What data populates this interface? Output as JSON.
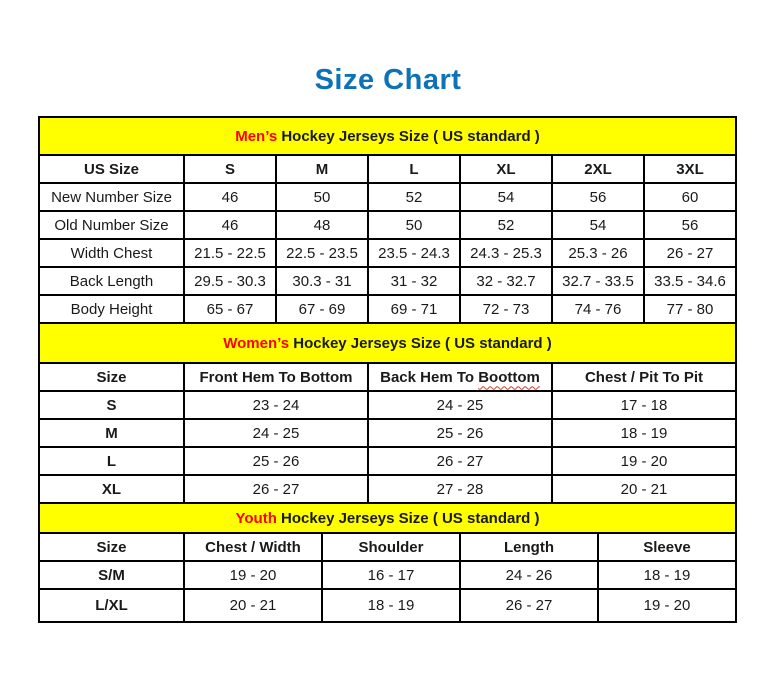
{
  "page_title": "Size Chart",
  "colors": {
    "title_blue": "#0e72b8",
    "banner_yellow": "#ffff00",
    "accent_red": "#ff0000",
    "border_black": "#000000"
  },
  "tables": [
    {
      "id": "mens",
      "banner_highlight": "Men’s",
      "banner_text": " Hockey Jerseys Size ( US standard )",
      "columns": [
        {
          "text": "US Size"
        },
        {
          "text": "S"
        },
        {
          "text": "M"
        },
        {
          "text": "L"
        },
        {
          "text": "XL"
        },
        {
          "text": "2XL"
        },
        {
          "text": "3XL"
        }
      ],
      "rows": [
        {
          "label": "New Number Size",
          "values": [
            "46",
            "50",
            "52",
            "54",
            "56",
            "60"
          ]
        },
        {
          "label": "Old Number Size",
          "values": [
            "46",
            "48",
            "50",
            "52",
            "54",
            "56"
          ]
        },
        {
          "label": "Width Chest",
          "values": [
            "21.5 - 22.5",
            "22.5 - 23.5",
            "23.5 - 24.3",
            "24.3 - 25.3",
            "25.3 - 26",
            "26 - 27"
          ]
        },
        {
          "label": "Back Length",
          "values": [
            "29.5 - 30.3",
            "30.3 - 31",
            "31 - 32",
            "32 - 32.7",
            "32.7 - 33.5",
            "33.5 - 34.6"
          ]
        },
        {
          "label": "Body Height",
          "values": [
            "65 - 67",
            "67 - 69",
            "69 - 71",
            "72 - 73",
            "74 - 76",
            "77 - 80"
          ]
        }
      ]
    },
    {
      "id": "womens",
      "banner_highlight": "Women’s",
      "banner_text": " Hockey Jerseys Size ( US standard )",
      "columns": [
        {
          "text": "Size"
        },
        {
          "text": "Front Hem To Bottom"
        },
        {
          "text": "Back Hem To Boottom",
          "spellcheck_word": "Boottom"
        },
        {
          "text": "Chest / Pit To Pit"
        }
      ],
      "rows": [
        {
          "label": "S",
          "values": [
            "23 - 24",
            "24 - 25",
            "17 - 18"
          ]
        },
        {
          "label": "M",
          "values": [
            "24 - 25",
            "25 - 26",
            "18 - 19"
          ]
        },
        {
          "label": "L",
          "values": [
            "25 - 26",
            "26 - 27",
            "19 - 20"
          ]
        },
        {
          "label": "XL",
          "values": [
            "26 - 27",
            "27 - 28",
            "20 - 21"
          ]
        }
      ]
    },
    {
      "id": "youth",
      "banner_highlight": "Youth",
      "banner_text": " Hockey Jerseys Size ( US standard )",
      "columns": [
        {
          "text": "Size"
        },
        {
          "text": "Chest / Width"
        },
        {
          "text": "Shoulder"
        },
        {
          "text": "Length"
        },
        {
          "text": "Sleeve"
        }
      ],
      "rows": [
        {
          "label": "S/M",
          "values": [
            "19 - 20",
            "16 - 17",
            "24 - 26",
            "18 - 19"
          ]
        },
        {
          "label": "L/XL",
          "values": [
            "20 - 21",
            "18 - 19",
            "26 - 27",
            "19 - 20"
          ]
        }
      ]
    }
  ]
}
